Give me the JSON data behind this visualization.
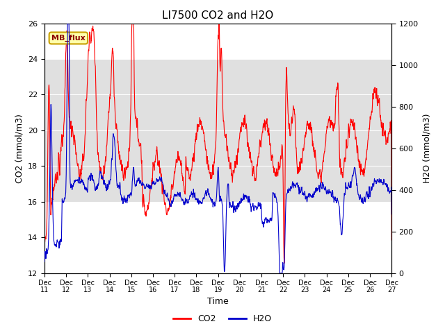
{
  "title": "LI7500 CO2 and H2O",
  "xlabel": "Time",
  "ylabel_left": "CO2 (mmol/m3)",
  "ylabel_right": "H2O (mmol/m3)",
  "ylim_left": [
    12,
    26
  ],
  "ylim_right": [
    0,
    1200
  ],
  "co2_color": "#ff0000",
  "h2o_color": "#0000cc",
  "bg_color": "#ffffff",
  "shading_color": "#e0e0e0",
  "shading_ymin": 16,
  "shading_ymax": 24,
  "annotation_text": "MB_flux",
  "annotation_bg": "#ffffaa",
  "annotation_border": "#c8a000",
  "legend_co2": "CO2",
  "legend_h2o": "H2O",
  "x_tick_labels": [
    "Dec 11",
    "Dec 12",
    "Dec 13",
    "Dec 14",
    "Dec 15",
    "Dec 16",
    "Dec 17",
    "Dec 18",
    "Dec 19",
    "Dec 20",
    "Dec 21",
    "Dec 22",
    "Dec 23",
    "Dec 24",
    "Dec 25",
    "Dec 26",
    "Dec 27"
  ],
  "x_tick_positions": [
    0,
    1,
    2,
    3,
    4,
    5,
    6,
    7,
    8,
    9,
    10,
    11,
    12,
    13,
    14,
    15,
    16
  ],
  "yticks_left": [
    12,
    14,
    16,
    18,
    20,
    22,
    24,
    26
  ],
  "yticks_right": [
    0,
    200,
    400,
    600,
    800,
    1000,
    1200
  ],
  "figwidth": 6.4,
  "figheight": 4.8,
  "dpi": 100
}
